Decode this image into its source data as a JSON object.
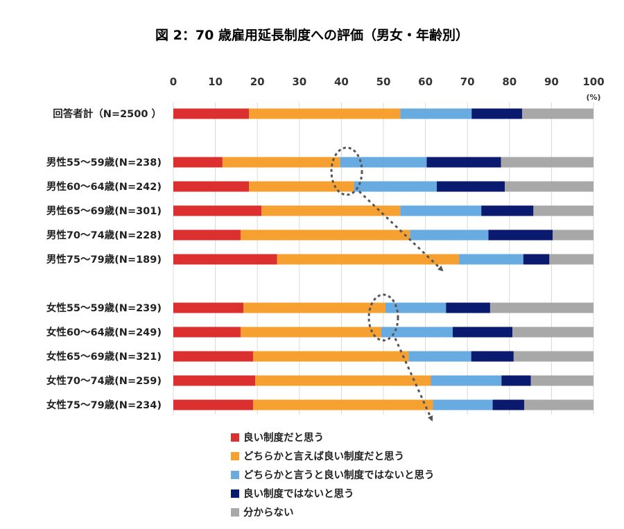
{
  "chart_data": {
    "type": "bar",
    "orientation": "horizontal",
    "stacked": true,
    "title": "図 2：70 歳雇用延長制度への評価（男女・年齢別）",
    "xlim": [
      0,
      100
    ],
    "xticks": [
      "0",
      "10",
      "20",
      "30",
      "40",
      "50",
      "60",
      "70",
      "80",
      "90",
      "100"
    ],
    "unit_label": "(%)",
    "grid": true,
    "legend_position": "bottom",
    "categories": [
      "回答者計（N=2500 ）",
      "男性55～59歳(N=238)",
      "男性60～64歳(N=242)",
      "男性65～69歳(N=301)",
      "男性70～74歳(N=228)",
      "男性75～79歳(N=189)",
      "女性55～59歳(N=239)",
      "女性60～64歳(N=249)",
      "女性65～69歳(N=321)",
      "女性70～74歳(N=259)",
      "女性75～79歳(N=234)"
    ],
    "series": [
      {
        "name": "良い制度だと思う",
        "color": "#dc2f2f",
        "values": [
          18,
          11.7,
          18,
          21,
          16,
          24.7,
          16.7,
          16,
          19,
          19.5,
          19
        ]
      },
      {
        "name": "どちらかと言えば良い制度だと思う",
        "color": "#f5a031",
        "values": [
          36,
          28,
          25,
          33,
          40.3,
          43.3,
          33.8,
          33.5,
          37,
          41.8,
          42.8
        ]
      },
      {
        "name": "どちらかと言うと良い制度ではないと思う",
        "color": "#67abe0",
        "values": [
          17,
          20.6,
          19.7,
          19.3,
          18.7,
          15.3,
          14.4,
          17,
          14.9,
          16.8,
          14.2
        ]
      },
      {
        "name": "良い制度ではないと思う",
        "color": "#0a1a6e",
        "values": [
          12,
          17.7,
          16.2,
          12.4,
          15.3,
          6.2,
          10.5,
          14.2,
          10.1,
          7,
          7.5
        ]
      },
      {
        "name": "分からない",
        "color": "#a8a8a8",
        "values": [
          17,
          22,
          21.1,
          14.3,
          9.7,
          10.5,
          24.6,
          19.3,
          19,
          14.9,
          16.5
        ]
      }
    ]
  }
}
